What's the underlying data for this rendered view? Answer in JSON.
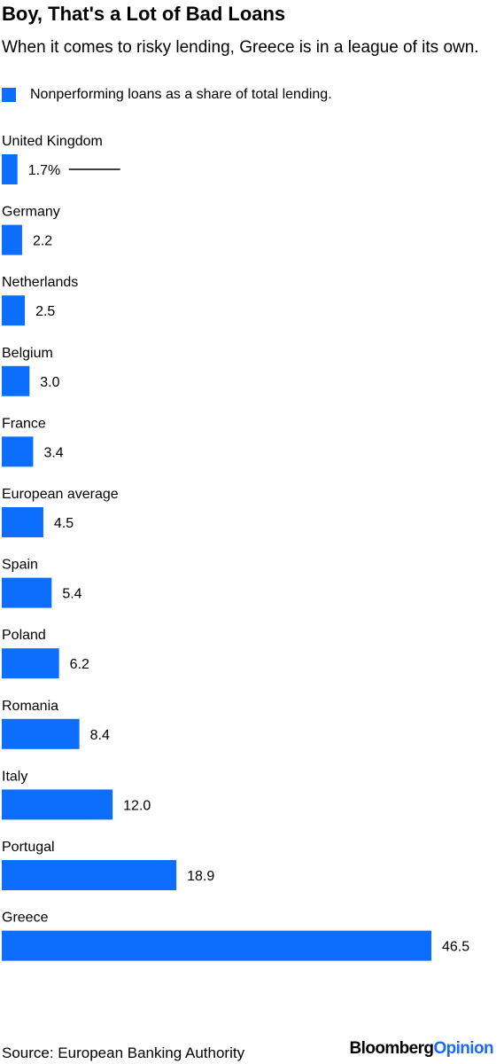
{
  "title": "Boy, That's a Lot of Bad Loans",
  "subtitle": "When it comes to risky lending, Greece is in a league of its own.",
  "legend": {
    "label": "Nonperforming loans as a share of total lending."
  },
  "colors": {
    "bar": "#0d6efd",
    "text": "#000000"
  },
  "chart_data": {
    "type": "bar",
    "orientation": "horizontal",
    "series": [
      {
        "name": "Nonperforming loans as a share of total lending.",
        "values": [
          1.7,
          2.2,
          2.5,
          3.0,
          3.4,
          4.5,
          5.4,
          6.2,
          8.4,
          12.0,
          18.9,
          46.5
        ]
      }
    ],
    "categories": [
      "United Kingdom",
      "Germany",
      "Netherlands",
      "Belgium",
      "France",
      "European average",
      "Spain",
      "Poland",
      "Romania",
      "Italy",
      "Portugal",
      "Greece"
    ],
    "value_labels": [
      "1.7%",
      "2.2",
      "2.5",
      "3.0",
      "3.4",
      "4.5",
      "5.4",
      "6.2",
      "8.4",
      "12.0",
      "18.9",
      "46.5"
    ],
    "xlim": [
      0,
      46.5
    ],
    "grid": false,
    "legend_position": "top-left"
  },
  "footer": {
    "source": "Source: European Banking Authority",
    "brand_part1": "Bloomberg",
    "brand_part2": "Opinion"
  }
}
